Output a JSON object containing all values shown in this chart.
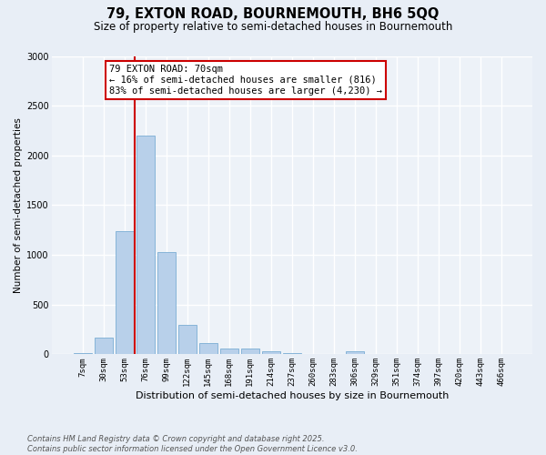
{
  "title_line1": "79, EXTON ROAD, BOURNEMOUTH, BH6 5QQ",
  "title_line2": "Size of property relative to semi-detached houses in Bournemouth",
  "xlabel": "Distribution of semi-detached houses by size in Bournemouth",
  "ylabel": "Number of semi-detached properties",
  "categories": [
    "7sqm",
    "30sqm",
    "53sqm",
    "76sqm",
    "99sqm",
    "122sqm",
    "145sqm",
    "168sqm",
    "191sqm",
    "214sqm",
    "237sqm",
    "260sqm",
    "283sqm",
    "306sqm",
    "329sqm",
    "351sqm",
    "374sqm",
    "397sqm",
    "420sqm",
    "443sqm",
    "466sqm"
  ],
  "values": [
    10,
    170,
    1240,
    2200,
    1030,
    295,
    110,
    60,
    55,
    35,
    10,
    0,
    0,
    30,
    0,
    0,
    0,
    0,
    0,
    0,
    0
  ],
  "bar_color": "#b8d0ea",
  "bar_edge_color": "#7aadd4",
  "vline_color": "#cc0000",
  "annotation_box_color": "#cc0000",
  "property_label": "79 EXTON ROAD: 70sqm",
  "pct_smaller": 16,
  "pct_smaller_n": 816,
  "pct_larger": 83,
  "pct_larger_n": 4230,
  "vline_x": 2.5,
  "ylim": [
    0,
    3000
  ],
  "yticks": [
    0,
    500,
    1000,
    1500,
    2000,
    2500,
    3000
  ],
  "bg_color": "#e8eef6",
  "plot_bg_color": "#edf2f8",
  "footer_line1": "Contains HM Land Registry data © Crown copyright and database right 2025.",
  "footer_line2": "Contains public sector information licensed under the Open Government Licence v3.0.",
  "title1_fontsize": 10.5,
  "title2_fontsize": 8.5,
  "xlabel_fontsize": 8.0,
  "ylabel_fontsize": 7.5,
  "tick_fontsize": 6.5,
  "footer_fontsize": 6.0,
  "ann_fontsize": 7.5
}
